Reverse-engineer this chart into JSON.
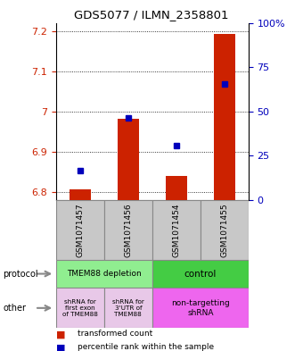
{
  "title": "GDS5077 / ILMN_2358801",
  "samples": [
    "GSM1071457",
    "GSM1071456",
    "GSM1071454",
    "GSM1071455"
  ],
  "red_values": [
    6.806,
    6.982,
    6.84,
    7.192
  ],
  "blue_values": [
    6.853,
    6.984,
    6.916,
    7.068
  ],
  "ylim": [
    6.78,
    7.22
  ],
  "yticks_left": [
    6.8,
    6.9,
    7.0,
    7.1,
    7.2
  ],
  "yticks_left_labels": [
    "6.8",
    "6.9",
    "7",
    "7.1",
    "7.2"
  ],
  "yticks_right": [
    0,
    25,
    50,
    75,
    100
  ],
  "yticks_right_labels": [
    "0",
    "25",
    "50",
    "75",
    "100%"
  ],
  "ybase": 6.78,
  "protocol_labels": [
    "TMEM88 depletion",
    "control"
  ],
  "other_labels": [
    "shRNA for\nfirst exon\nof TMEM88",
    "shRNA for\n3'UTR of\nTMEM88",
    "non-targetting\nshRNA"
  ],
  "protocol_colors": [
    "#90EE90",
    "#44CC44"
  ],
  "other_colors": [
    "#E8C8E8",
    "#E8C8E8",
    "#EE66EE"
  ],
  "legend_red": "transformed count",
  "legend_blue": "percentile rank within the sample",
  "bar_color": "#CC2200",
  "dot_color": "#0000BB",
  "ax_color": "#CC2200",
  "right_ax_color": "#0000BB",
  "bg_color": "#FFFFFF",
  "sample_bg": "#C8C8C8",
  "border_color": "#888888"
}
